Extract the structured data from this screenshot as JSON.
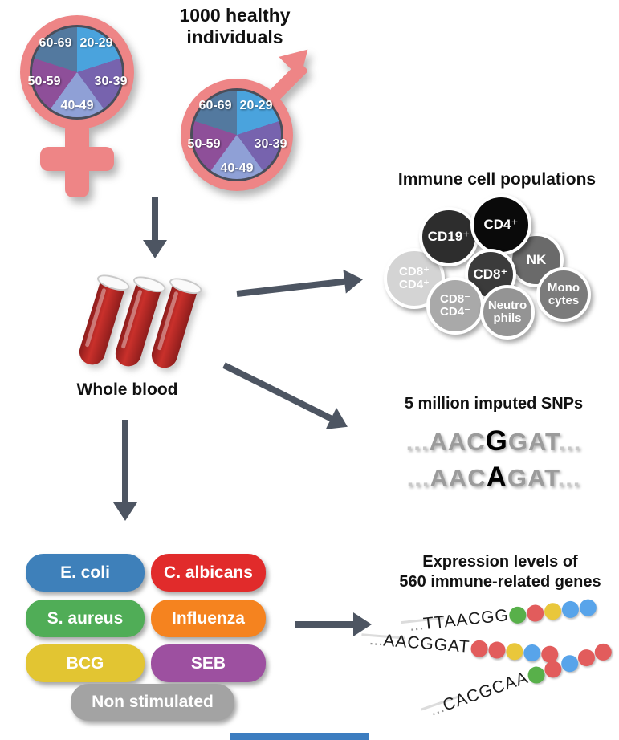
{
  "title": {
    "line1": "1000 healthy",
    "line2": "individuals"
  },
  "colors": {
    "symbol_pink": "#ee8586",
    "arrow": "#4d5562",
    "pie_outline": "#4a4e5a",
    "blood_red": "#c9302b",
    "bottom_bar_blue": "#3c7dc0"
  },
  "demographics": {
    "age_slices": [
      {
        "label": "20-29",
        "color": "#4aa3dd"
      },
      {
        "label": "30-39",
        "color": "#7763ae"
      },
      {
        "label": "40-49",
        "color": "#8fa0d6"
      },
      {
        "label": "50-59",
        "color": "#8e4f99"
      },
      {
        "label": "60-69",
        "color": "#53799f"
      }
    ]
  },
  "whole_blood": {
    "label": "Whole blood"
  },
  "immune_cells": {
    "title": "Immune cell populations",
    "populations": [
      {
        "id": "cd8pos-cd4pos",
        "lines": [
          "CD8⁺",
          "CD4⁺"
        ],
        "color": "#d4d4d4"
      },
      {
        "id": "cd19pos",
        "lines": [
          "CD19⁺"
        ],
        "color": "#2d2d2d"
      },
      {
        "id": "nk",
        "lines": [
          "NK"
        ],
        "color": "#6a6a6a"
      },
      {
        "id": "cd4pos",
        "lines": [
          "CD4⁺"
        ],
        "color": "#0a0a0a"
      },
      {
        "id": "cd8pos",
        "lines": [
          "CD8⁺"
        ],
        "color": "#3b3b3b"
      },
      {
        "id": "cd8neg-cd4neg",
        "lines": [
          "CD8⁻",
          "CD4⁻"
        ],
        "color": "#a9a9a9"
      },
      {
        "id": "neutrophils",
        "lines": [
          "Neutro",
          "phils"
        ],
        "color": "#949494"
      },
      {
        "id": "monocytes",
        "lines": [
          "Mono",
          "cytes"
        ],
        "color": "#7b7b7b"
      }
    ]
  },
  "snps": {
    "title": "5 million imputed SNPs",
    "sequences": [
      {
        "prefix": "...",
        "before": "AAC",
        "variant": "G",
        "after": "GAT",
        "suffix": "..."
      },
      {
        "prefix": "...",
        "before": "AAC",
        "variant": "A",
        "after": "GAT",
        "suffix": "..."
      }
    ]
  },
  "stimuli": {
    "pills": [
      {
        "label": "E. coli",
        "color": "#3e80ba"
      },
      {
        "label": "C. albicans",
        "color": "#e12b2b"
      },
      {
        "label": "S. aureus",
        "color": "#50ad57"
      },
      {
        "label": "Influenza",
        "color": "#f5831f"
      },
      {
        "label": "BCG",
        "color": "#e2c532"
      },
      {
        "label": "SEB",
        "color": "#9d50a0"
      },
      {
        "label": "Non stimulated",
        "color": "#a3a3a3"
      }
    ]
  },
  "expression": {
    "title_line1": "Expression levels of",
    "title_line2": "560 immune-related genes",
    "dot_colors": {
      "green": "#58b04a",
      "red": "#e25c5c",
      "yellow": "#e9c73b",
      "blue": "#58a4ea"
    },
    "reads": [
      {
        "prefix": "...",
        "sequence": "TTAACGG",
        "dots": [
          "green",
          "red",
          "yellow",
          "blue",
          "blue"
        ]
      },
      {
        "prefix": "...",
        "sequence": "AACGGAT",
        "dots": [
          "red",
          "red",
          "yellow",
          "blue",
          "red"
        ]
      },
      {
        "prefix": "...",
        "sequence": "CACGCAA",
        "dots": [
          "green",
          "red",
          "blue",
          "red",
          "red"
        ]
      }
    ]
  }
}
